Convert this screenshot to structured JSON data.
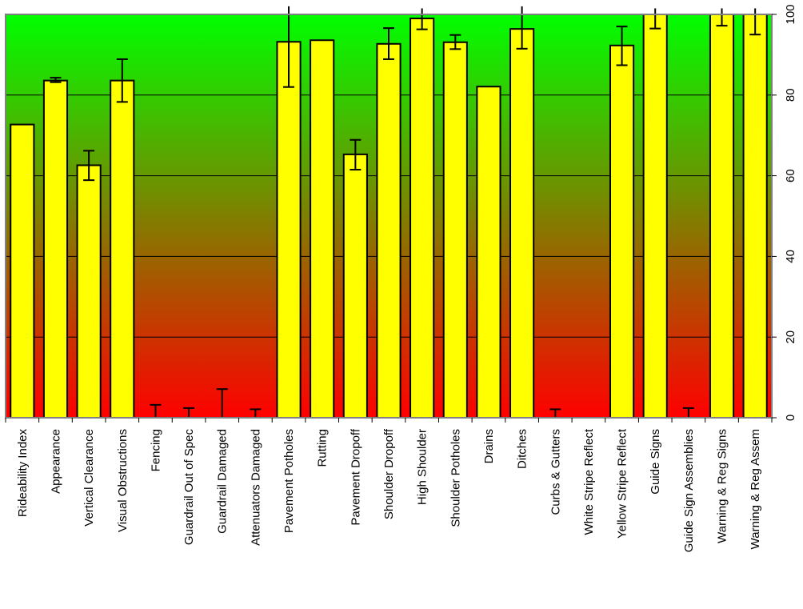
{
  "chart_data": {
    "type": "bar",
    "title": "",
    "xlabel": "",
    "ylabel": "",
    "ylim": [
      0,
      100
    ],
    "yticks": [
      0,
      20,
      40,
      60,
      80,
      100
    ],
    "grid": true,
    "background_gradient": {
      "top": "#00ff00",
      "bottom": "#ff0000"
    },
    "bar_color": "#ffff00",
    "bar_edge_color": "#000000",
    "categories": [
      "Rideability Index",
      "Appearance",
      "Vertical Clearance",
      "Visual Obstructions",
      "Fencing",
      "Guardrail Out of Spec",
      "Guardrail Damaged",
      "Attenuators Damaged",
      "Pavement Potholes",
      "Rutting",
      "Pavement Dropoff",
      "Shoulder Dropoff",
      "High Shoulder",
      "Shoulder Potholes",
      "Drains",
      "Ditches",
      "Curbs & Gutters",
      "White Stripe Reflect",
      "Yellow Stripe Reflect",
      "Guide Signs",
      "Guide Sign Assemblies",
      "Warning & Reg Signs",
      "Warning & Reg Assem"
    ],
    "values": [
      72.7,
      83.6,
      62.6,
      83.6,
      0,
      0,
      0,
      0,
      93.2,
      93.6,
      65.3,
      92.7,
      99.0,
      93.1,
      82.1,
      96.4,
      0,
      0,
      92.3,
      100,
      0,
      100,
      100
    ],
    "error_low": [
      72.7,
      83.2,
      58.9,
      78.3,
      0,
      0,
      0,
      0,
      82.0,
      93.6,
      61.5,
      88.9,
      96.3,
      91.4,
      82.1,
      91.5,
      0,
      0,
      87.4,
      96.5,
      0,
      97.2,
      95.0
    ],
    "error_high": [
      72.7,
      84.3,
      66.2,
      88.9,
      3.2,
      2.4,
      7.1,
      2.1,
      102.0,
      93.6,
      68.9,
      96.6,
      101.5,
      94.9,
      82.1,
      102.0,
      2.1,
      0,
      97.0,
      101.5,
      2.4,
      101.5,
      101.5
    ]
  }
}
